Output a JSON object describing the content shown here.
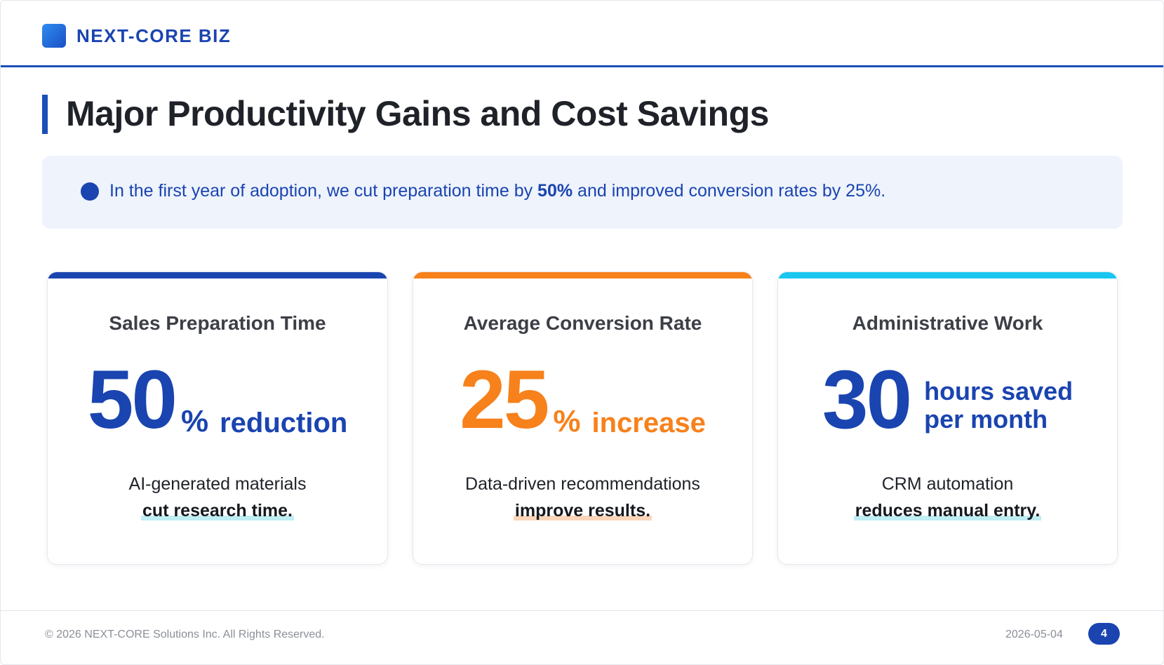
{
  "header": {
    "brand": "NEXT-CORE BIZ",
    "logo_icon": "square-logo-icon",
    "accent_color": "#1a44b0"
  },
  "title": "Major Productivity Gains and Cost Savings",
  "summary": {
    "bullet_icon": "circle-bullet-icon",
    "text_before": "In the first year of adoption, we cut preparation time by ",
    "text_strong": "50%",
    "text_after": " and improved conversion rates by 25%."
  },
  "cards": [
    {
      "title": "Sales Preparation Time",
      "value": "50",
      "unit": "%",
      "qualifier": "reduction",
      "desc_line1": "AI-generated materials",
      "desc_line2": "cut research time.",
      "accent_color": "#1a44b0"
    },
    {
      "title": "Average Conversion Rate",
      "value": "25",
      "unit": "%",
      "qualifier": "increase",
      "desc_line1": "Data-driven recommendations",
      "desc_line2": "improve results.",
      "accent_color": "#f7811b"
    },
    {
      "title": "Administrative Work",
      "value": "30",
      "qualifier_line1": "hours saved",
      "qualifier_line2": "per month",
      "desc_line1": "CRM automation",
      "desc_line2": "reduces manual entry.",
      "accent_color": "#19c6f0"
    }
  ],
  "footer": {
    "copyright": "© 2026 NEXT-CORE Solutions Inc. All Rights Reserved.",
    "date": "2026-05-04",
    "page": "4"
  }
}
